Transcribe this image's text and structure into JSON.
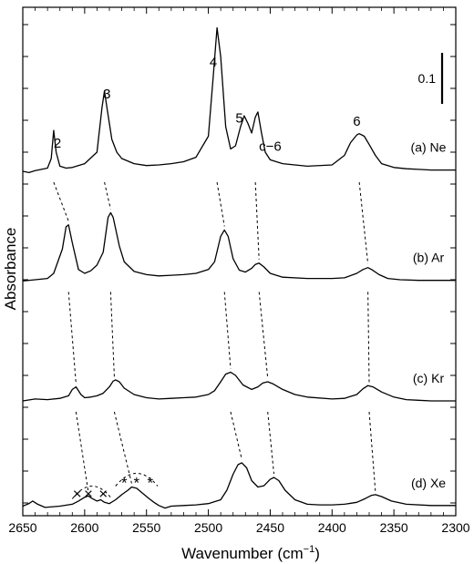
{
  "chart_data": {
    "type": "line",
    "title": "",
    "xlabel_main": "Wavenumber (cm",
    "xlabel_sup": "−1",
    "xlabel_close": ")",
    "ylabel": "Absorbance",
    "xlim": [
      2650,
      2300
    ],
    "x_ticks": [
      2650,
      2600,
      2550,
      2500,
      2450,
      2400,
      2350,
      2300
    ],
    "scale_bar": {
      "label": "0.1",
      "value": 0.1
    },
    "grid": false,
    "series": [
      {
        "name": "(a) Ne",
        "baseline": 0.0,
        "x": [
          2650,
          2645,
          2640,
          2635,
          2630,
          2627,
          2625,
          2623,
          2620,
          2615,
          2610,
          2600,
          2590,
          2586,
          2584,
          2582,
          2578,
          2574,
          2570,
          2560,
          2550,
          2540,
          2530,
          2520,
          2510,
          2500,
          2496,
          2493,
          2490,
          2486,
          2482,
          2478,
          2474,
          2471,
          2468,
          2465,
          2462,
          2460,
          2457,
          2454,
          2450,
          2440,
          2420,
          2400,
          2390,
          2385,
          2380,
          2378,
          2374,
          2370,
          2365,
          2360,
          2350,
          2340,
          2330,
          2320,
          2310,
          2300
        ],
        "y": [
          0.0,
          -0.002,
          0.001,
          0.003,
          0.005,
          0.02,
          0.064,
          0.03,
          0.008,
          0.005,
          0.006,
          0.012,
          0.03,
          0.1,
          0.126,
          0.1,
          0.05,
          0.03,
          0.02,
          0.012,
          0.009,
          0.01,
          0.012,
          0.015,
          0.022,
          0.055,
          0.15,
          0.225,
          0.18,
          0.07,
          0.035,
          0.04,
          0.07,
          0.087,
          0.075,
          0.06,
          0.085,
          0.093,
          0.06,
          0.03,
          0.018,
          0.012,
          0.008,
          0.01,
          0.025,
          0.045,
          0.057,
          0.059,
          0.055,
          0.042,
          0.025,
          0.012,
          0.006,
          0.004,
          0.003,
          0.002,
          0.002,
          0.002
        ]
      },
      {
        "name": "(b) Ar",
        "baseline": -0.172,
        "x": [
          2650,
          2640,
          2630,
          2625,
          2618,
          2615,
          2613,
          2610,
          2605,
          2600,
          2595,
          2590,
          2585,
          2581,
          2579,
          2577,
          2572,
          2568,
          2560,
          2550,
          2540,
          2530,
          2520,
          2510,
          2500,
          2495,
          2490,
          2487,
          2484,
          2480,
          2475,
          2470,
          2465,
          2462,
          2459,
          2455,
          2450,
          2440,
          2420,
          2400,
          2390,
          2380,
          2375,
          2371,
          2368,
          2362,
          2355,
          2345,
          2330,
          2315,
          2300
        ],
        "y": [
          0.0,
          0.002,
          0.004,
          0.012,
          0.05,
          0.085,
          0.088,
          0.06,
          0.018,
          0.012,
          0.016,
          0.025,
          0.045,
          0.1,
          0.107,
          0.1,
          0.055,
          0.03,
          0.015,
          0.01,
          0.008,
          0.009,
          0.01,
          0.012,
          0.018,
          0.03,
          0.07,
          0.08,
          0.07,
          0.035,
          0.017,
          0.014,
          0.02,
          0.026,
          0.028,
          0.022,
          0.012,
          0.006,
          0.004,
          0.004,
          0.005,
          0.012,
          0.018,
          0.021,
          0.018,
          0.01,
          0.004,
          0.002,
          0.001,
          0.001,
          0.001
        ]
      },
      {
        "name": "(c) Kr",
        "baseline": -0.36,
        "x": [
          2650,
          2640,
          2630,
          2620,
          2613,
          2610,
          2607,
          2603,
          2600,
          2595,
          2590,
          2585,
          2580,
          2577,
          2575,
          2572,
          2568,
          2560,
          2550,
          2540,
          2530,
          2520,
          2510,
          2500,
          2495,
          2490,
          2486,
          2482,
          2478,
          2472,
          2465,
          2460,
          2456,
          2452,
          2448,
          2440,
          2430,
          2420,
          2400,
          2390,
          2380,
          2375,
          2371,
          2367,
          2360,
          2350,
          2340,
          2330,
          2320,
          2310,
          2300
        ],
        "y": [
          0.0,
          0.003,
          0.002,
          0.004,
          0.008,
          0.018,
          0.022,
          0.01,
          0.005,
          0.006,
          0.008,
          0.012,
          0.022,
          0.031,
          0.033,
          0.03,
          0.02,
          0.01,
          0.005,
          0.003,
          0.004,
          0.005,
          0.006,
          0.01,
          0.016,
          0.03,
          0.042,
          0.045,
          0.04,
          0.025,
          0.018,
          0.022,
          0.028,
          0.03,
          0.027,
          0.018,
          0.01,
          0.006,
          0.003,
          0.004,
          0.01,
          0.019,
          0.024,
          0.022,
          0.014,
          0.006,
          0.002,
          0.001,
          0.0,
          0.0,
          0.0
        ]
      },
      {
        "name": "(d) Xe",
        "baseline": -0.525,
        "x": [
          2650,
          2645,
          2642,
          2638,
          2632,
          2620,
          2610,
          2605,
          2600,
          2597,
          2594,
          2590,
          2587,
          2584,
          2580,
          2575,
          2570,
          2565,
          2562,
          2558,
          2553,
          2548,
          2544,
          2540,
          2535,
          2530,
          2520,
          2510,
          2500,
          2490,
          2485,
          2480,
          2476,
          2473,
          2469,
          2465,
          2460,
          2455,
          2450,
          2447,
          2443,
          2438,
          2430,
          2420,
          2410,
          2400,
          2390,
          2380,
          2373,
          2368,
          2365,
          2360,
          2352,
          2340,
          2320,
          2300
        ],
        "y": [
          0.0,
          0.004,
          0.008,
          0.003,
          -0.002,
          0.0,
          0.003,
          0.008,
          0.014,
          0.016,
          0.012,
          0.008,
          0.01,
          0.006,
          0.004,
          0.01,
          0.018,
          0.025,
          0.03,
          0.028,
          0.02,
          0.012,
          0.006,
          0.001,
          -0.003,
          0.0,
          0.001,
          0.002,
          0.004,
          0.01,
          0.025,
          0.05,
          0.065,
          0.068,
          0.06,
          0.04,
          0.03,
          0.032,
          0.042,
          0.045,
          0.04,
          0.025,
          0.01,
          0.003,
          0.002,
          0.002,
          0.003,
          0.006,
          0.012,
          0.017,
          0.018,
          0.015,
          0.008,
          0.003,
          0.001,
          0.001
        ]
      }
    ],
    "peak_labels": [
      {
        "text": "2",
        "x": 2622,
        "series": 0
      },
      {
        "text": "3",
        "x": 2582,
        "series": 0
      },
      {
        "text": "4",
        "x": 2496,
        "series": 0
      },
      {
        "text": "5",
        "x": 2475,
        "series": 0
      },
      {
        "text": "c−6",
        "x": 2450,
        "series": 0
      },
      {
        "text": "6",
        "x": 2380,
        "series": 0
      }
    ],
    "correlation_lines": [
      [
        [
          2625,
          0
        ],
        [
          2613,
          1
        ],
        [
          2607,
          2
        ],
        [
          2597,
          3
        ]
      ],
      [
        [
          2584,
          0
        ],
        [
          2579,
          1
        ],
        [
          2576,
          2
        ],
        [
          2562,
          3
        ]
      ],
      [
        [
          2493,
          0
        ],
        [
          2487,
          1
        ],
        [
          2482,
          2
        ],
        [
          2473,
          3
        ]
      ],
      [
        [
          2462,
          0
        ],
        [
          2459,
          1
        ],
        [
          2452,
          2
        ],
        [
          2447,
          3
        ]
      ],
      [
        [
          2378,
          0
        ],
        [
          2371,
          1
        ],
        [
          2370,
          2
        ],
        [
          2365,
          3
        ]
      ]
    ],
    "annotations": {
      "site_marks_x": [
        {
          "text": "×",
          "x": 2606
        },
        {
          "text": "×",
          "x": 2597
        },
        {
          "text": "×",
          "x": 2585
        }
      ],
      "site_marks_star": [
        {
          "text": "*",
          "x": 2568
        },
        {
          "text": "*",
          "x": 2558
        },
        {
          "text": "*",
          "x": 2547
        }
      ]
    }
  }
}
